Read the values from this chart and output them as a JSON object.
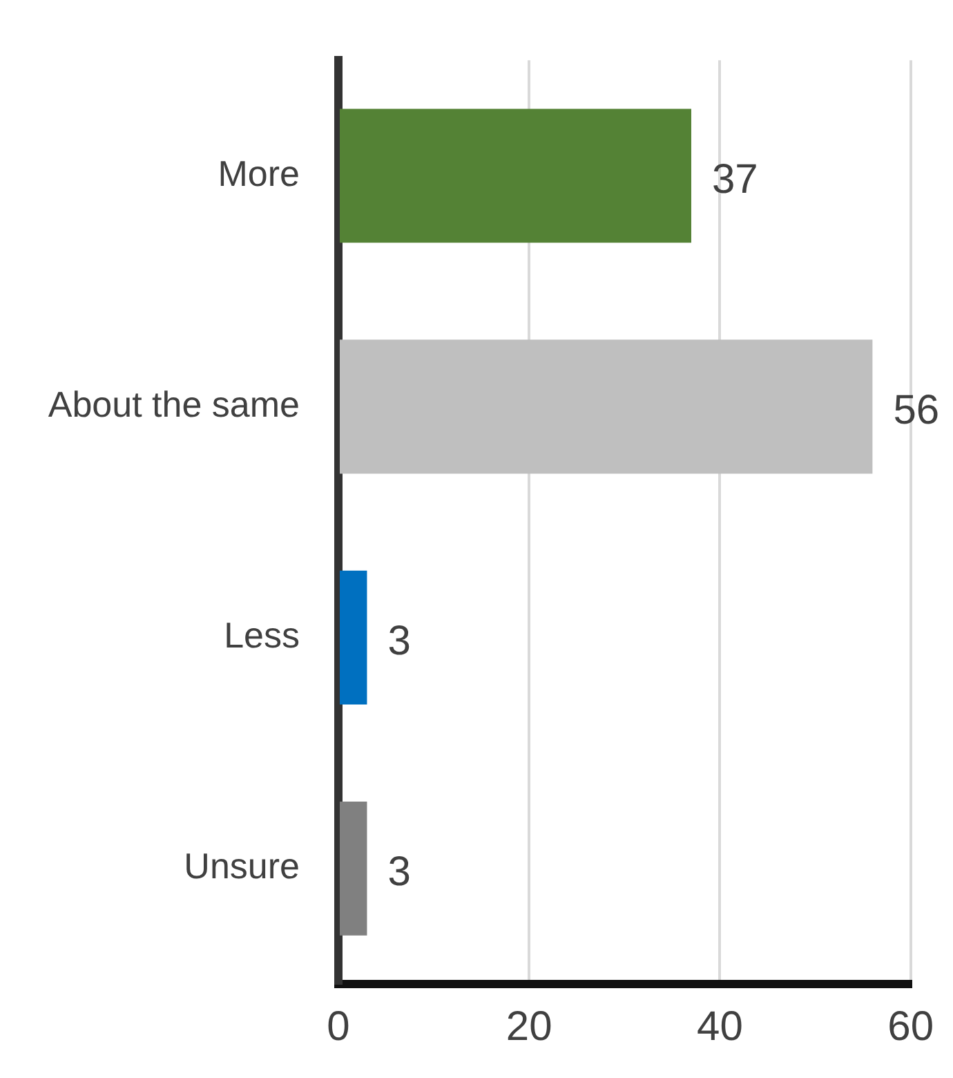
{
  "chart_data": {
    "type": "bar",
    "orientation": "horizontal",
    "categories": [
      "More",
      "About the same",
      "Less",
      "Unsure"
    ],
    "values": [
      37,
      56,
      3,
      3
    ],
    "colors": [
      "#548235",
      "#bfbfbf",
      "#0070c0",
      "#808080"
    ],
    "xlim": [
      0,
      60
    ],
    "xticks": [
      0,
      20,
      40,
      60
    ],
    "grid": "x",
    "data_labels": true
  }
}
